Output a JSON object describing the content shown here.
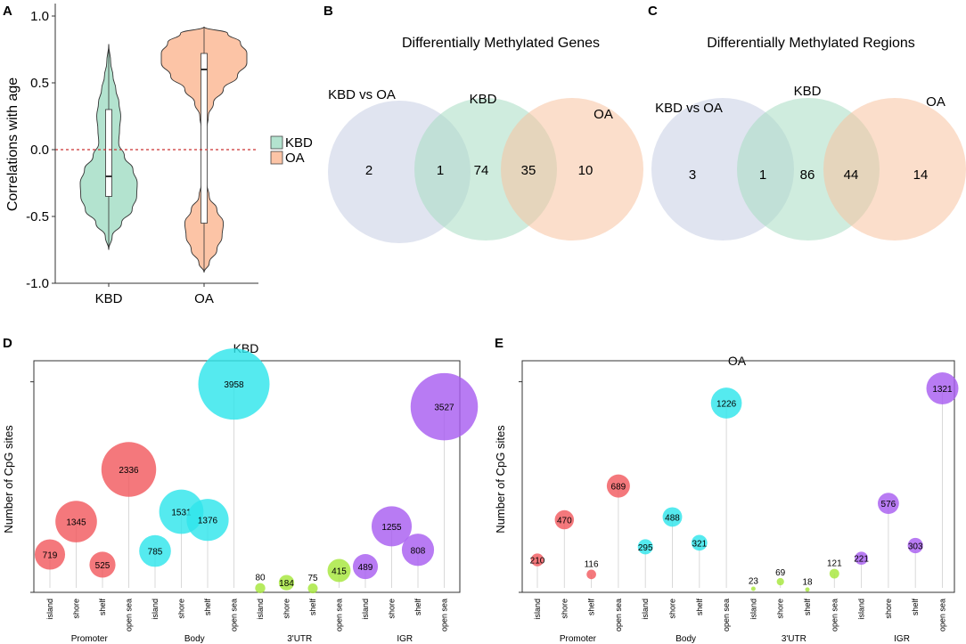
{
  "panels": {
    "a": {
      "letter": "A"
    },
    "b": {
      "letter": "B"
    },
    "c": {
      "letter": "C"
    },
    "d": {
      "letter": "D"
    },
    "e": {
      "letter": "E"
    }
  },
  "colors": {
    "kbd_violin": "#b3e3cf",
    "oa_violin": "#fcc4a6",
    "dashed_ref": "#cc3333",
    "venn_kbd_vs_oa": "#d3d8ea",
    "venn_kbd": "#a8dcc3",
    "venn_oa": "#f8c2a0",
    "promoter": "#f25a5f",
    "body": "#2fe5ec",
    "utr3": "#a6e63c",
    "igr": "#a85ef0"
  },
  "chart_data": [
    {
      "id": "violin",
      "type": "violin",
      "ylabel": "Correlations with age",
      "ylim": [
        -1.0,
        1.0
      ],
      "yticks": [
        -1.0,
        -0.5,
        0.0,
        0.5,
        1.0
      ],
      "ytick_labels": [
        "-1.0",
        "-0.5",
        "0.0",
        "0.5",
        "1.0"
      ],
      "reference_line": 0.0,
      "categories": [
        "KBD",
        "OA"
      ],
      "legend": [
        "KBD",
        "OA"
      ],
      "groups": [
        {
          "name": "KBD",
          "range": [
            -0.75,
            0.79
          ],
          "box": {
            "q1": -0.35,
            "median": -0.2,
            "q3": 0.3
          },
          "density_y": [
            -0.75,
            -0.65,
            -0.55,
            -0.45,
            -0.35,
            -0.25,
            -0.15,
            -0.05,
            0.05,
            0.15,
            0.25,
            0.35,
            0.45,
            0.55,
            0.65,
            0.79
          ],
          "density_w": [
            0.0,
            0.12,
            0.45,
            0.82,
            0.98,
            1.0,
            0.85,
            0.55,
            0.35,
            0.38,
            0.42,
            0.36,
            0.25,
            0.15,
            0.07,
            0.0
          ]
        },
        {
          "name": "OA",
          "range": [
            -0.92,
            0.92
          ],
          "box": {
            "q1": -0.55,
            "median": 0.6,
            "q3": 0.72
          },
          "density_y": [
            -0.92,
            -0.85,
            -0.75,
            -0.65,
            -0.55,
            -0.45,
            -0.35,
            -0.25,
            -0.15,
            -0.05,
            0.05,
            0.15,
            0.25,
            0.35,
            0.45,
            0.55,
            0.65,
            0.72,
            0.8,
            0.87,
            0.92
          ],
          "density_w": [
            0.0,
            0.12,
            0.3,
            0.42,
            0.45,
            0.3,
            0.12,
            0.06,
            0.05,
            0.05,
            0.05,
            0.06,
            0.1,
            0.22,
            0.45,
            0.78,
            1.0,
            1.0,
            0.85,
            0.55,
            0.0
          ]
        }
      ]
    },
    {
      "id": "venn_genes",
      "type": "venn",
      "title": "Differentially Methylated Genes",
      "sets": [
        "KBD vs OA",
        "KBD",
        "OA"
      ],
      "regions": {
        "kbd_vs_oa_only": 2,
        "kbd_vs_oa_and_kbd": 1,
        "kbd_only": 74,
        "kbd_and_oa": 35,
        "oa_only": 10
      }
    },
    {
      "id": "venn_regions",
      "type": "venn",
      "title": "Differentially Methylated Regions",
      "sets": [
        "KBD vs OA",
        "KBD",
        "OA"
      ],
      "regions": {
        "kbd_vs_oa_only": 3,
        "kbd_vs_oa_and_kbd": 1,
        "kbd_only": 86,
        "kbd_and_oa": 44,
        "oa_only": 14
      }
    },
    {
      "id": "bubble_kbd",
      "type": "bubble",
      "title": "KBD",
      "ylabel": "Number of CpG sites",
      "ylim": [
        0,
        4400
      ],
      "yticks": [
        0,
        4000
      ],
      "size_max": 3958,
      "categories": [
        "island",
        "shore",
        "shelf",
        "open sea",
        "island",
        "shore",
        "shelf",
        "open sea",
        "island",
        "shore",
        "shelf",
        "open sea",
        "island",
        "shore",
        "shelf",
        "open sea"
      ],
      "groups": [
        "Promoter",
        "Body",
        "3'UTR",
        "IGR"
      ],
      "values": [
        719,
        1345,
        525,
        2336,
        785,
        1531,
        1376,
        3958,
        80,
        184,
        75,
        415,
        489,
        1255,
        808,
        3527
      ]
    },
    {
      "id": "bubble_oa",
      "type": "bubble",
      "title": "OA",
      "ylabel": "Number of CpG sites",
      "ylim": [
        0,
        1500
      ],
      "yticks": [
        0,
        1364
      ],
      "size_max": 1321,
      "categories": [
        "island",
        "shore",
        "shelf",
        "open sea",
        "island",
        "shore",
        "shelf",
        "open sea",
        "island",
        "shore",
        "shelf",
        "open sea",
        "island",
        "shore",
        "shelf",
        "open sea"
      ],
      "groups": [
        "Promoter",
        "Body",
        "3'UTR",
        "IGR"
      ],
      "values": [
        210,
        470,
        116,
        689,
        295,
        488,
        321,
        1226,
        23,
        69,
        18,
        121,
        221,
        576,
        303,
        1321
      ]
    }
  ]
}
